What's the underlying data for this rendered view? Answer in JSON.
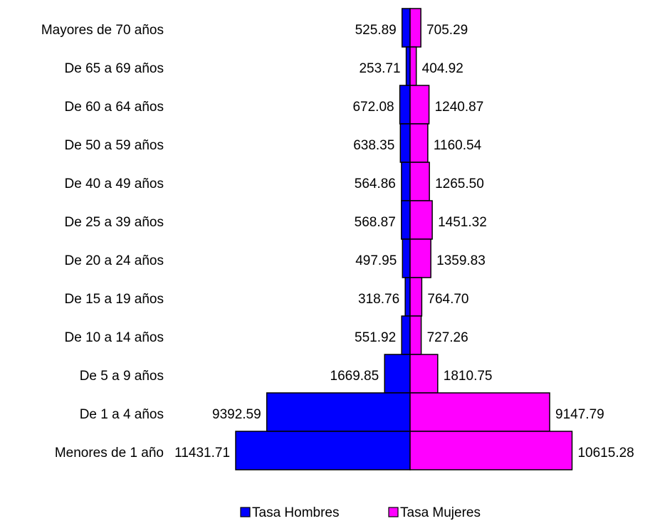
{
  "chart_data": {
    "type": "pyramid",
    "categories": [
      "Mayores de 70 años",
      "De 65 a 69 años",
      "De 60 a 64 años",
      "De 50 a 59 años",
      "De 40 a 49 años",
      "De 25 a 39 años",
      "De 20 a 24 años",
      "De 15 a 19 años",
      "De 10 a 14 años",
      "De 5 a 9 años",
      "De 1 a 4 años",
      "Menores de 1 año"
    ],
    "series": [
      {
        "name": "Tasa Hombres",
        "color": "#0000ff",
        "side": "left",
        "values": [
          525.89,
          253.71,
          672.08,
          638.35,
          564.86,
          568.87,
          497.95,
          318.76,
          551.92,
          1669.85,
          9392.59,
          11431.71
        ]
      },
      {
        "name": "Tasa Mujeres",
        "color": "#ff00ff",
        "side": "right",
        "values": [
          705.29,
          404.92,
          1240.87,
          1160.54,
          1265.5,
          1451.32,
          1359.83,
          764.7,
          727.26,
          1810.75,
          9147.79,
          10615.28
        ],
        "value_labels": [
          "705.29",
          "404.92",
          "1240.87",
          "1160.54",
          "1265.50",
          "1451.32",
          "1359.83",
          "764.70",
          "727.26",
          "1810.75",
          "9147.79",
          "10615.28"
        ]
      }
    ],
    "legend": "bottom"
  }
}
